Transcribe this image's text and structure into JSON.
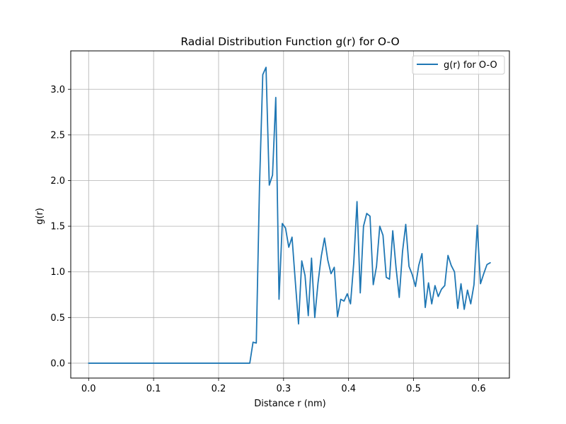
{
  "chart_data": {
    "type": "line",
    "title": "Radial Distribution Function g(r) for O-O",
    "xlabel": "Distance r (nm)",
    "ylabel": "g(r)",
    "xlim": [
      -0.0275,
      0.6475
    ],
    "ylim": [
      -0.163,
      3.42
    ],
    "xticks": [
      0.0,
      0.1,
      0.2,
      0.3,
      0.4,
      0.5,
      0.6
    ],
    "xtick_labels": [
      "0.0",
      "0.1",
      "0.2",
      "0.3",
      "0.4",
      "0.5",
      "0.6"
    ],
    "yticks": [
      0.0,
      0.5,
      1.0,
      1.5,
      2.0,
      2.5,
      3.0
    ],
    "ytick_labels": [
      "0.0",
      "0.5",
      "1.0",
      "1.5",
      "2.0",
      "2.5",
      "3.0"
    ],
    "grid": true,
    "legend_position": "top-right",
    "line_color": "#1f77b4",
    "series": [
      {
        "name": "g(r) for O-O",
        "x": [
          0.0,
          0.005,
          0.01,
          0.015,
          0.02,
          0.025,
          0.03,
          0.035,
          0.04,
          0.045,
          0.05,
          0.055,
          0.06,
          0.065,
          0.07,
          0.075,
          0.08,
          0.085,
          0.09,
          0.095,
          0.1,
          0.105,
          0.11,
          0.115,
          0.12,
          0.125,
          0.13,
          0.135,
          0.14,
          0.145,
          0.15,
          0.155,
          0.16,
          0.165,
          0.17,
          0.175,
          0.18,
          0.185,
          0.19,
          0.195,
          0.2,
          0.205,
          0.21,
          0.215,
          0.22,
          0.225,
          0.23,
          0.235,
          0.24,
          0.245,
          0.248,
          0.253,
          0.258,
          0.263,
          0.268,
          0.273,
          0.278,
          0.283,
          0.288,
          0.293,
          0.298,
          0.303,
          0.308,
          0.313,
          0.318,
          0.323,
          0.328,
          0.333,
          0.338,
          0.343,
          0.348,
          0.353,
          0.358,
          0.363,
          0.368,
          0.373,
          0.378,
          0.383,
          0.388,
          0.393,
          0.398,
          0.403,
          0.408,
          0.413,
          0.418,
          0.423,
          0.428,
          0.433,
          0.438,
          0.443,
          0.448,
          0.453,
          0.458,
          0.463,
          0.468,
          0.473,
          0.478,
          0.483,
          0.488,
          0.493,
          0.498,
          0.503,
          0.508,
          0.513,
          0.518,
          0.523,
          0.528,
          0.533,
          0.538,
          0.543,
          0.548,
          0.553,
          0.558,
          0.563,
          0.568,
          0.573,
          0.578,
          0.583,
          0.588,
          0.593,
          0.598,
          0.603,
          0.608,
          0.613,
          0.618
        ],
        "y": [
          0,
          0,
          0,
          0,
          0,
          0,
          0,
          0,
          0,
          0,
          0,
          0,
          0,
          0,
          0,
          0,
          0,
          0,
          0,
          0,
          0,
          0,
          0,
          0,
          0,
          0,
          0,
          0,
          0,
          0,
          0,
          0,
          0,
          0,
          0,
          0,
          0,
          0,
          0,
          0,
          0,
          0,
          0,
          0,
          0,
          0,
          0,
          0,
          0,
          0,
          0.0,
          0.23,
          0.22,
          1.95,
          3.16,
          3.24,
          1.95,
          2.06,
          2.91,
          0.7,
          1.53,
          1.48,
          1.27,
          1.38,
          0.9,
          0.43,
          1.12,
          0.96,
          0.52,
          1.15,
          0.5,
          0.88,
          1.17,
          1.37,
          1.13,
          0.98,
          1.05,
          0.51,
          0.7,
          0.68,
          0.76,
          0.65,
          1.1,
          1.77,
          0.77,
          1.5,
          1.64,
          1.61,
          0.86,
          1.06,
          1.5,
          1.4,
          0.94,
          0.92,
          1.45,
          1.05,
          0.72,
          1.22,
          1.52,
          1.06,
          0.97,
          0.84,
          1.07,
          1.2,
          0.61,
          0.88,
          0.65,
          0.85,
          0.73,
          0.81,
          0.85,
          1.18,
          1.07,
          1.0,
          0.6,
          0.87,
          0.59,
          0.8,
          0.65,
          0.86,
          1.51,
          0.87,
          0.98,
          1.08,
          1.1
        ]
      }
    ]
  }
}
